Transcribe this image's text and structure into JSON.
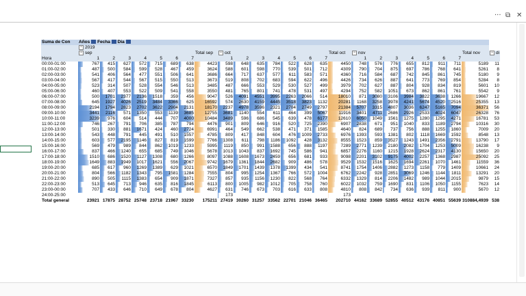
{
  "window": {
    "more_glyph": "···",
    "restore_glyph": "⧉",
    "close_glyph": "✕"
  },
  "pivot": {
    "corner_title": "Suma de Con",
    "filters": [
      "Años",
      "Fecha",
      "Dia"
    ],
    "year_label": "2019",
    "month_labels": [
      "sep",
      "oct",
      "nov",
      "di"
    ],
    "total_labels": [
      "Total sep",
      "Total oct",
      "Total nov"
    ],
    "row_label": "Hora",
    "day_headers": [
      "1",
      "2",
      "3",
      "4",
      "5",
      "6",
      "7",
      "1",
      "2",
      "3",
      "4",
      "5",
      "6",
      "7",
      "1",
      "2",
      "3",
      "4",
      "5",
      "6",
      "7"
    ],
    "rows": [
      {
        "hora": "00:00-01:00",
        "first": "767",
        "sep": [
          "415",
          "627",
          "572",
          "715",
          "689",
          "638"
        ],
        "tsep": "4423",
        "oct": [
          "598",
          "648",
          "635",
          "784",
          "522",
          "628",
          "635"
        ],
        "toct": "4450",
        "nov": [
          "748",
          "576",
          "776",
          "655",
          "812",
          "911",
          "711"
        ],
        "tnov": "5189",
        "extra": "11"
      },
      {
        "hora": "01:00-02:00",
        "first": "487",
        "sep": [
          "500",
          "584",
          "599",
          "528",
          "467",
          "459"
        ],
        "tsep": "3624",
        "oct": [
          "588",
          "601",
          "598",
          "770",
          "539",
          "501",
          "712"
        ],
        "toct": "4309",
        "nov": [
          "790",
          "704",
          "875",
          "697",
          "786",
          "768",
          "641"
        ],
        "tnov": "5261",
        "extra": "8"
      },
      {
        "hora": "02:00-03:00",
        "first": "541",
        "sep": [
          "406",
          "564",
          "477",
          "551",
          "506",
          "641"
        ],
        "tsep": "3686",
        "oct": [
          "664",
          "717",
          "637",
          "577",
          "611",
          "583",
          "571"
        ],
        "toct": "4360",
        "nov": [
          "716",
          "584",
          "687",
          "742",
          "845",
          "861",
          "745"
        ],
        "tnov": "5180",
        "extra": "9"
      },
      {
        "hora": "03:00-04:00",
        "first": "567",
        "sep": [
          "417",
          "544",
          "567",
          "515",
          "550",
          "513"
        ],
        "tsep": "3673",
        "oct": [
          "519",
          "808",
          "702",
          "683",
          "594",
          "622",
          "496"
        ],
        "toct": "4426",
        "nov": [
          "734",
          "626",
          "887",
          "641",
          "773",
          "769",
          "854"
        ],
        "tnov": "5284",
        "extra": "8"
      },
      {
        "hora": "04:00-05:00",
        "first": "523",
        "sep": [
          "314",
          "507",
          "528",
          "554",
          "546",
          "513"
        ],
        "tsep": "3485",
        "oct": [
          "487",
          "666",
          "553",
          "529",
          "530",
          "527",
          "499"
        ],
        "toct": "3979",
        "nov": [
          "702",
          "627",
          "887",
          "804",
          "928",
          "834",
          "819"
        ],
        "tnov": "5601",
        "extra": "10"
      },
      {
        "hora": "05:00-06:00",
        "first": "460",
        "sep": [
          "407",
          "553",
          "522",
          "509",
          "541",
          "558"
        ],
        "tsep": "3550",
        "oct": [
          "481",
          "765",
          "801",
          "741",
          "478",
          "531",
          "497"
        ],
        "toct": "4294",
        "nov": [
          "752",
          "582",
          "1051",
          "673",
          "862",
          "861",
          "761"
        ],
        "tnov": "5542",
        "extra": "9"
      },
      {
        "hora": "06:00-07:00",
        "first": "500",
        "sep": [
          "1701",
          "2377",
          "2136",
          "1518",
          "359",
          "456"
        ],
        "tsep": "9047",
        "oct": [
          "526",
          "4091",
          "4551",
          "3995",
          "2263",
          "2066",
          "514"
        ],
        "toct": "18010",
        "nov": [
          "871",
          "3080",
          "3106",
          "3984",
          "3822",
          "3638",
          "1266"
        ],
        "tnov": "19667",
        "extra": "12"
      },
      {
        "hora": "07:00-08:00",
        "first": "645",
        "sep": [
          "1927",
          "4026",
          "2519",
          "3484",
          "3366",
          "625"
        ],
        "tsep": "16592",
        "oct": [
          "574",
          "2630",
          "4159",
          "4445",
          "3518",
          "3823",
          "1132"
        ],
        "toct": "20281",
        "nov": [
          "1168",
          "3258",
          "3978",
          "4241",
          "5674",
          "4520",
          "2516"
        ],
        "tnov": "25355",
        "extra": "13"
      },
      {
        "hora": "08:00-09:00",
        "first": "2194",
        "sep": [
          "1794",
          "2823",
          "2702",
          "3622",
          "2904",
          "2131"
        ],
        "tsep": "18170",
        "oct": [
          "2237",
          "4978",
          "3596",
          "2321",
          "2704",
          "2749",
          "2797"
        ],
        "toct": "21384",
        "nov": [
          "5707",
          "3315",
          "4807",
          "3036",
          "6247",
          "5165",
          "7094"
        ],
        "tnov": "36371",
        "extra": "56"
      },
      {
        "hora": "09:00-10:00",
        "first": "3441",
        "sep": [
          "2116",
          "571",
          "1350",
          "553",
          "1139",
          "3685"
        ],
        "tsep": "12755",
        "oct": [
          "3681",
          "1140",
          "554",
          "611",
          "464",
          "399",
          "5067"
        ],
        "toct": "11916",
        "nov": [
          "3401",
          "4711",
          "2686",
          "2926",
          "2533",
          "4024",
          "6047"
        ],
        "tnov": "26328",
        "extra": "76"
      },
      {
        "hora": "10:00-11:00",
        "first": "3239",
        "sep": [
          "976",
          "604",
          "514",
          "444",
          "707",
          "4000"
        ],
        "tsep": "10484",
        "oct": [
          "3489",
          "596",
          "686",
          "545",
          "639",
          "478",
          "6177"
        ],
        "toct": "12610",
        "nov": [
          "6050",
          "1049",
          "1561",
          "1275",
          "1280",
          "1295",
          "4271"
        ],
        "tnov": "16781",
        "extra": "53"
      },
      {
        "hora": "11:00-12:00",
        "first": "746",
        "sep": [
          "267",
          "791",
          "706",
          "385",
          "787",
          "794"
        ],
        "tsep": "4476",
        "oct": [
          "901",
          "809",
          "646",
          "916",
          "520",
          "725",
          "2390"
        ],
        "toct": "6907",
        "nov": [
          "2838",
          "671",
          "951",
          "1040",
          "833",
          "1189",
          "2794"
        ],
        "tnov": "10316",
        "extra": "30"
      },
      {
        "hora": "12:00-13:00",
        "first": "501",
        "sep": [
          "330",
          "881",
          "1671",
          "424",
          "460",
          "2724"
        ],
        "tsep": "6991",
        "oct": [
          "464",
          "549",
          "662",
          "538",
          "471",
          "371",
          "1585"
        ],
        "toct": "4640",
        "nov": [
          "824",
          "689",
          "737",
          "756",
          "888",
          "1255",
          "1860"
        ],
        "tnov": "7009",
        "extra": "20"
      },
      {
        "hora": "13:00-14:00",
        "first": "543",
        "sep": [
          "448",
          "791",
          "445",
          "491",
          "510",
          "1557"
        ],
        "tsep": "4785",
        "oct": [
          "809",
          "417",
          "848",
          "604",
          "476",
          "1009",
          "2733"
        ],
        "toct": "6976",
        "nov": [
          "1393",
          "593",
          "1381",
          "802",
          "1118",
          "1669",
          "1592"
        ],
        "tnov": "8548",
        "extra": "13"
      },
      {
        "hora": "14:00-15:00",
        "first": "603",
        "sep": [
          "577",
          "2195",
          "1146",
          "827",
          "819",
          "1599"
        ],
        "tsep": "7766",
        "oct": [
          "1308",
          "611",
          "798",
          "1186",
          "1092",
          "428",
          "3132"
        ],
        "toct": "8555",
        "nov": [
          "1523",
          "859",
          "3527",
          "1243",
          "1491",
          "2356",
          "2791"
        ],
        "tnov": "13790",
        "extra": "17"
      },
      {
        "hora": "15:00-16:00",
        "first": "569",
        "sep": [
          "479",
          "989",
          "844",
          "862",
          "1019",
          "1233"
        ],
        "tsep": "5995",
        "oct": [
          "1119",
          "850",
          "991",
          "1588",
          "656",
          "888",
          "1197"
        ],
        "toct": "7289",
        "nov": [
          "2771",
          "1239",
          "2180",
          "2082",
          "1704",
          "1253",
          "5009"
        ],
        "tnov": "16238",
        "extra": "9"
      },
      {
        "hora": "16:00-17:00",
        "first": "837",
        "sep": [
          "466",
          "1240",
          "655",
          "685",
          "749",
          "1046"
        ],
        "tsep": "5678",
        "oct": [
          "1013",
          "1043",
          "837",
          "1692",
          "745",
          "586",
          "941"
        ],
        "toct": "6857",
        "nov": [
          "2276",
          "1160",
          "1215",
          "1928",
          "2624",
          "2317",
          "4130"
        ],
        "tnov": "15650",
        "extra": "20"
      },
      {
        "hora": "17:00-18:00",
        "first": "1510",
        "sep": [
          "686",
          "1520",
          "1127",
          "1308",
          "680",
          "1266"
        ],
        "tsep": "8097",
        "oct": [
          "1088",
          "1608",
          "1673",
          "2459",
          "656",
          "681",
          "933"
        ],
        "toct": "9098",
        "nov": [
          "2201",
          "3102",
          "9175",
          "4002",
          "2257",
          "1368",
          "2987"
        ],
        "tnov": "25092",
        "extra": "25"
      },
      {
        "hora": "18:00-19:00",
        "first": "1649",
        "sep": [
          "883",
          "1949",
          "1017",
          "1621",
          "556",
          "2067"
        ],
        "tsep": "9742",
        "oct": [
          "1679",
          "1361",
          "1844",
          "2682",
          "909",
          "486",
          "578"
        ],
        "toct": "9529",
        "nov": [
          "1532",
          "1516",
          "1625",
          "1694",
          "2261",
          "1070",
          "1461"
        ],
        "tnov": "11559",
        "extra": "36"
      },
      {
        "hora": "19:00-20:00",
        "first": "685",
        "sep": [
          "617",
          "960",
          "1269",
          "1389",
          "629",
          "1021"
        ],
        "tsep": "6570",
        "oct": [
          "1849",
          "1701",
          "1439",
          "1378",
          "1399",
          "434",
          "541"
        ],
        "toct": "8741",
        "nov": [
          "1754",
          "1406",
          "2882",
          "1273",
          "1158",
          "779",
          "1409"
        ],
        "tnov": "10661",
        "extra": "24"
      },
      {
        "hora": "20:00-21:00",
        "first": "804",
        "sep": [
          "566",
          "1182",
          "1343",
          "795",
          "1581",
          "1284"
        ],
        "tsep": "7555",
        "oct": [
          "804",
          "995",
          "1254",
          "1367",
          "766",
          "572",
          "1004"
        ],
        "toct": "6762",
        "nov": [
          "2242",
          "928",
          "2851",
          "3069",
          "1246",
          "1144",
          "1811"
        ],
        "tnov": "13291",
        "extra": "20"
      },
      {
        "hora": "21:00-22:00",
        "first": "890",
        "sep": [
          "505",
          "1115",
          "1383",
          "654",
          "909",
          "1871"
        ],
        "tsep": "7327",
        "oct": [
          "857",
          "935",
          "1156",
          "1230",
          "822",
          "568",
          "764"
        ],
        "toct": "6332",
        "nov": [
          "1329",
          "814",
          "2206",
          "1482",
          "989",
          "1044",
          "2015"
        ],
        "tnov": "9879",
        "extra": "15"
      },
      {
        "hora": "22:00-23:00",
        "first": "513",
        "sep": [
          "645",
          "713",
          "946",
          "635",
          "816",
          "1845"
        ],
        "tsep": "6113",
        "oct": [
          "800",
          "1005",
          "982",
          "1012",
          "705",
          "758",
          "760"
        ],
        "toct": "6022",
        "nov": [
          "1032",
          "759",
          "1690",
          "831",
          "1106",
          "1050",
          "1155"
        ],
        "tnov": "7623",
        "extra": "14"
      },
      {
        "hora": "23:00-00:00",
        "first": "707",
        "sep": [
          "433",
          "646",
          "710",
          "649",
          "678",
          "804"
        ],
        "tsep": "4627",
        "oct": [
          "631",
          "746",
          "673",
          "703",
          "616",
          "633",
          "808"
        ],
        "toct": "4810",
        "nov": [
          "808",
          "842",
          "734",
          "636",
          "939",
          "811",
          "900"
        ],
        "tnov": "5670",
        "extra": "12"
      },
      {
        "hora": "24:00-25:00",
        "first": "",
        "sep": [
          "",
          "",
          "",
          "",
          "",
          ""
        ],
        "tsep": "",
        "oct": [
          "173",
          "",
          "",
          "",
          "",
          "",
          ""
        ],
        "toct": "173",
        "nov": [
          "",
          "",
          "",
          "",
          "",
          "",
          ""
        ],
        "tnov": "",
        "extra": ""
      }
    ],
    "total": {
      "label": "Total general",
      "first": "23921",
      "sep": [
        "17875",
        "28752",
        "25748",
        "23718",
        "21967",
        "33230"
      ],
      "tsep": "175211",
      "oct": [
        "27419",
        "30260",
        "31257",
        "33562",
        "22701",
        "21046",
        "36465"
      ],
      "toct": "202710",
      "nov": [
        "44162",
        "33689",
        "52855",
        "40512",
        "43176",
        "40851",
        "55639"
      ],
      "tnov": "310884,4939",
      "extra": "538"
    }
  },
  "colors": {
    "header_fill": "#dce6f1",
    "blue_bar": "#5b8fd4",
    "orange_bar": "#f0b86e",
    "grid_selection": "#217346"
  }
}
